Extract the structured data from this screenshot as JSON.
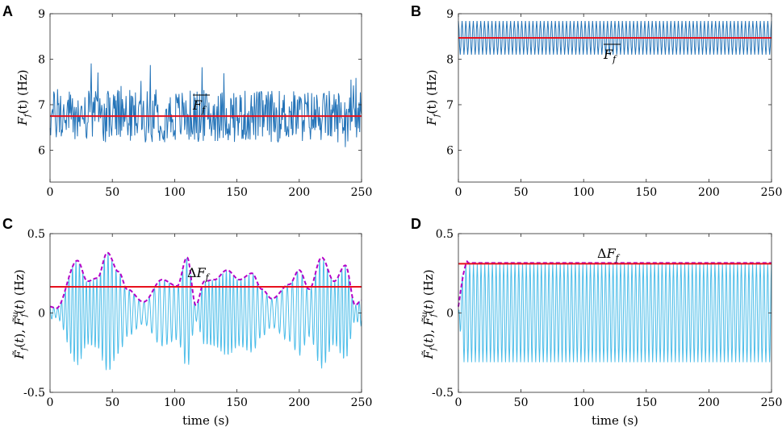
{
  "figure": {
    "width": 969,
    "height": 535
  },
  "colors": {
    "series_a": "#2373b8",
    "series_c": "#4cbde9",
    "mean_line": "#e8101c",
    "envelope": "#b400c8",
    "axis": "#262626"
  },
  "chart_data": [
    {
      "panel": "A",
      "type": "line",
      "xlabel": "",
      "ylabel": "F_f(t) (Hz)",
      "xlim": [
        0,
        250
      ],
      "ylim": [
        5.3,
        9
      ],
      "xticks": [
        "0",
        "50",
        "100",
        "150",
        "200",
        "250"
      ],
      "yticks": [
        "6",
        "7",
        "8",
        "9"
      ],
      "ytick_values": [
        6,
        7,
        8,
        9
      ],
      "annotation": "F_f (mean)",
      "mean": 6.75,
      "series": [
        {
          "name": "F_f(t)",
          "kind": "irregular",
          "center": 6.75,
          "amplitude": 0.55,
          "x_start": 0,
          "x_end": 250,
          "samples": 500
        }
      ]
    },
    {
      "panel": "B",
      "type": "line",
      "xlabel": "",
      "ylabel": "F_f(t) (Hz)",
      "xlim": [
        0,
        250
      ],
      "ylim": [
        5.3,
        9
      ],
      "xticks": [
        "0",
        "50",
        "100",
        "150",
        "200",
        "250"
      ],
      "yticks": [
        "6",
        "7",
        "8",
        "9"
      ],
      "ytick_values": [
        6,
        7,
        8,
        9
      ],
      "annotation": "F_f (mean)",
      "mean": 8.47,
      "series": [
        {
          "name": "F_f(t)",
          "kind": "periodic",
          "center": 8.47,
          "amplitude": 0.37,
          "cycles": 84,
          "x_start": 0,
          "x_end": 250
        }
      ]
    },
    {
      "panel": "C",
      "type": "line",
      "xlabel": "time (s)",
      "ylabel": "F~_f(t), F~_f^u(t) (Hz)",
      "xlim": [
        0,
        250
      ],
      "ylim": [
        -0.5,
        0.5
      ],
      "xticks": [
        "0",
        "50",
        "100",
        "150",
        "200",
        "250"
      ],
      "yticks": [
        "-0.5",
        "0",
        "0.5"
      ],
      "ytick_values": [
        -0.5,
        0,
        0.5
      ],
      "annotation": "ΔF_f",
      "mean": 0.165,
      "series": [
        {
          "name": "F~_f(t)",
          "kind": "irregular_oscillation",
          "x_start": 0,
          "x_end": 250,
          "samples": 1000
        },
        {
          "name": "F~_f^u(t)",
          "kind": "upper_envelope",
          "style": "dashed",
          "x_start": 0,
          "x_end": 250
        },
        {
          "name": "ΔF_f",
          "kind": "constant",
          "value": 0.165
        }
      ],
      "envelope_peaks": [
        [
          0,
          0.04
        ],
        [
          5,
          0.03
        ],
        [
          22,
          0.33
        ],
        [
          30,
          0.2
        ],
        [
          38,
          0.22
        ],
        [
          46,
          0.38
        ],
        [
          55,
          0.26
        ],
        [
          62,
          0.15
        ],
        [
          75,
          0.07
        ],
        [
          90,
          0.21
        ],
        [
          102,
          0.17
        ],
        [
          110,
          0.35
        ],
        [
          117,
          0.05
        ],
        [
          124,
          0.2
        ],
        [
          132,
          0.21
        ],
        [
          142,
          0.27
        ],
        [
          152,
          0.21
        ],
        [
          162,
          0.25
        ],
        [
          170,
          0.15
        ],
        [
          178,
          0.09
        ],
        [
          192,
          0.18
        ],
        [
          200,
          0.27
        ],
        [
          208,
          0.15
        ],
        [
          218,
          0.35
        ],
        [
          228,
          0.2
        ],
        [
          237,
          0.3
        ],
        [
          245,
          0.05
        ],
        [
          250,
          0.08
        ]
      ]
    },
    {
      "panel": "D",
      "type": "line",
      "xlabel": "time (s)",
      "ylabel": "F~_f(t), F~_f^u(t) (Hz)",
      "xlim": [
        0,
        250
      ],
      "ylim": [
        -0.5,
        0.5
      ],
      "xticks": [
        "0",
        "50",
        "100",
        "150",
        "200",
        "250"
      ],
      "yticks": [
        "-0.5",
        "0",
        "0.5"
      ],
      "ytick_values": [
        -0.5,
        0,
        0.5
      ],
      "annotation": "ΔF_f",
      "mean": 0.31,
      "series": [
        {
          "name": "F~_f(t)",
          "kind": "periodic",
          "center": 0,
          "amplitude": 0.31,
          "cycles": 83,
          "x_start": 0,
          "x_end": 250
        },
        {
          "name": "F~_f^u(t)",
          "kind": "upper_envelope",
          "style": "dashed",
          "value": 0.315
        },
        {
          "name": "ΔF_f",
          "kind": "constant",
          "value": 0.31
        }
      ]
    }
  ]
}
